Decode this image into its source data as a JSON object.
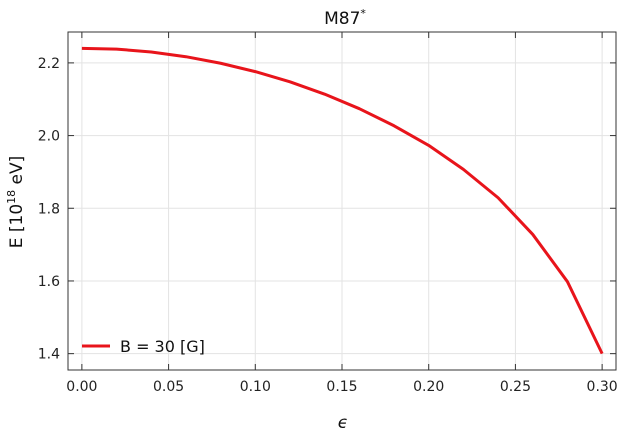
{
  "chart_data": {
    "type": "line",
    "title": "M87",
    "title_sup": "*",
    "xlabel": "ϵ",
    "ylabel_main": "E  [10",
    "ylabel_sup": "18",
    "ylabel_tail": " eV]",
    "xlim": [
      -0.008,
      0.308
    ],
    "ylim": [
      1.355,
      2.285
    ],
    "xticks": [
      0.0,
      0.05,
      0.1,
      0.15,
      0.2,
      0.25,
      0.3
    ],
    "xtick_labels": [
      "0.00",
      "0.05",
      "0.10",
      "0.15",
      "0.20",
      "0.25",
      "0.30"
    ],
    "yticks": [
      1.4,
      1.6,
      1.8,
      2.0,
      2.2
    ],
    "ytick_labels": [
      "1.4",
      "1.6",
      "1.8",
      "2.0",
      "2.2"
    ],
    "grid": true,
    "legend_position": "bottom-left",
    "series": [
      {
        "name": "B = 30 [G]",
        "color": "#e8141b",
        "x": [
          0.0,
          0.02,
          0.04,
          0.06,
          0.08,
          0.1,
          0.12,
          0.14,
          0.16,
          0.18,
          0.2,
          0.22,
          0.24,
          0.26,
          0.28,
          0.3
        ],
        "y": [
          2.24,
          2.238,
          2.23,
          2.217,
          2.199,
          2.176,
          2.148,
          2.114,
          2.074,
          2.027,
          1.973,
          1.907,
          1.829,
          1.728,
          1.598,
          1.4
        ]
      }
    ]
  }
}
